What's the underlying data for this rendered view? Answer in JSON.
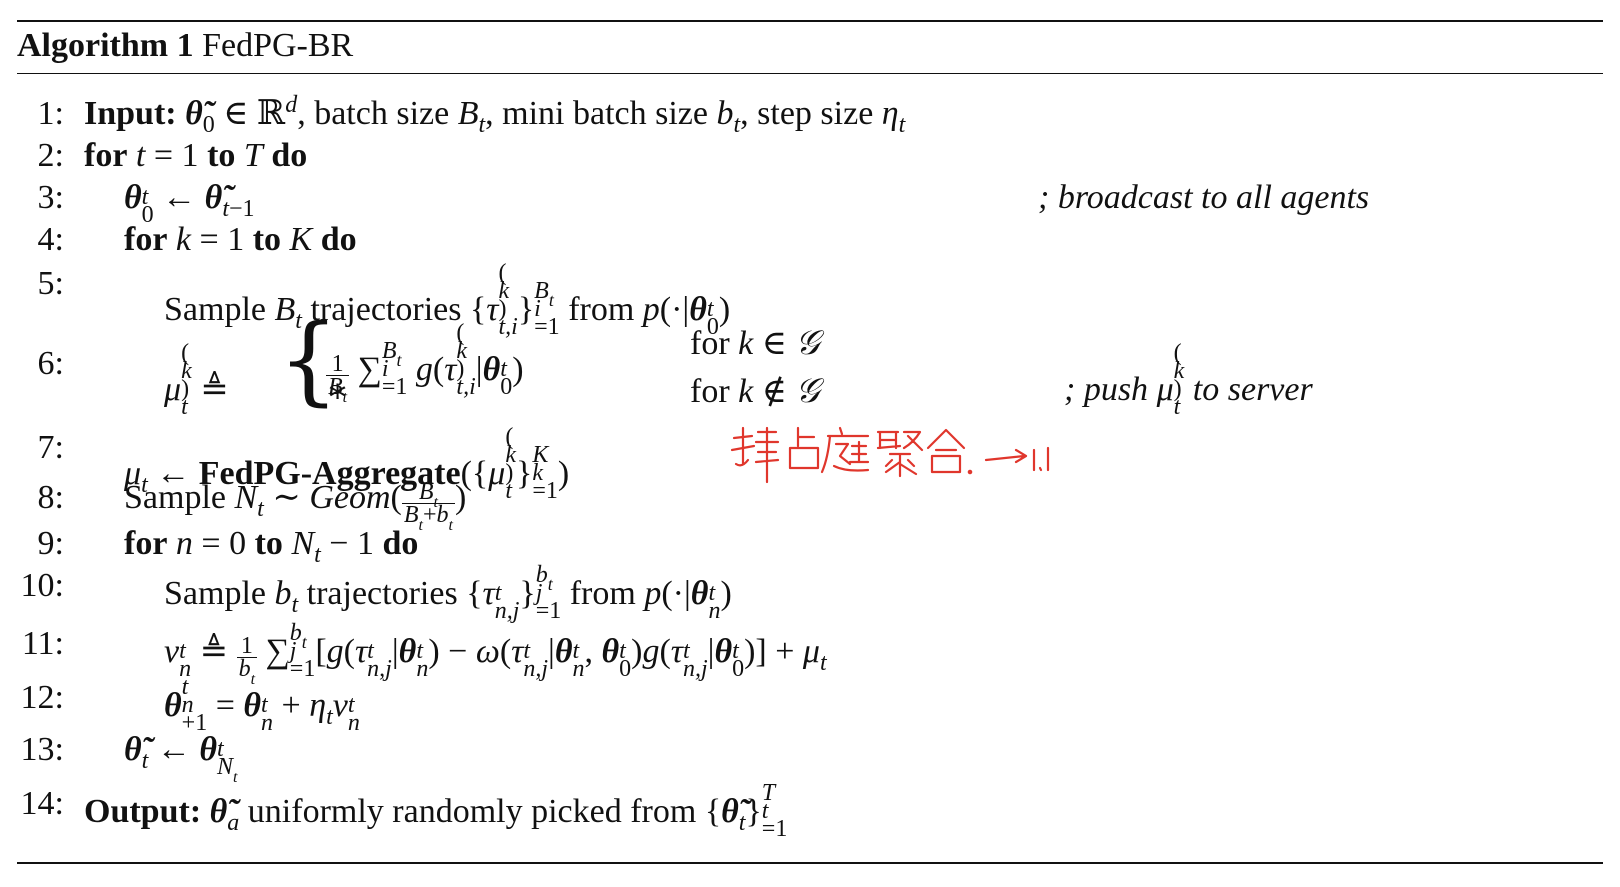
{
  "algorithm": {
    "label": "Algorithm 1",
    "name": "FedPG-BR"
  },
  "lines": [
    {
      "n": "1:",
      "kw": "Input:",
      "text": "θ̃0 ∈ ℝd, batch size Bt, mini batch size bt, step size ηt"
    },
    {
      "n": "2:",
      "kw": "for",
      "text": "t = 1 to T do"
    },
    {
      "n": "3:",
      "text": "θ0t ← θ̃t−1",
      "comment": "; broadcast to all agents"
    },
    {
      "n": "4:",
      "kw": "for",
      "text": "k = 1 to K do"
    },
    {
      "n": "5:",
      "text": "Sample Bt trajectories {τt,i(k)}i=1Bt from p(·|θ0t)"
    },
    {
      "n": "6:",
      "text": "μt(k) ≜",
      "comment": "; push μt(k) to server"
    },
    {
      "n": "7:",
      "text": "μt ← FedPG-Aggregate({μt(k)}k=1K)"
    },
    {
      "n": "8:",
      "text": "Sample Nt ∼ Geom(Bt / (Bt+bt))"
    },
    {
      "n": "9:",
      "kw": "for",
      "text": "n = 0 to Nt − 1 do"
    },
    {
      "n": "10:",
      "text": "Sample bt trajectories {τn,jt}j=1bt from p(·|θnt)"
    },
    {
      "n": "11:",
      "text": "vnt ≜ 1/bt Σj=1bt [g(τn,jt|θnt) − ω(τn,jt|θnt, θ0t)g(τn,jt|θ0t)] + μt"
    },
    {
      "n": "12:",
      "text": "θn+1t = θnt + ηtvnt"
    },
    {
      "n": "13:",
      "text": "θ̃t ← θNtt"
    },
    {
      "n": "14:",
      "kw": "Output:",
      "text": "θ̃a uniformly randomly picked from {θ̃t}t=1T"
    }
  ],
  "text": {
    "l1_a": ", batch size ",
    "l1_b": ", mini batch size ",
    "l1_c": ", step size ",
    "to": "to",
    "do": "do",
    "for": "for",
    "sample": "Sample ",
    "trajectories": " trajectories ",
    "from": " from ",
    "aggregate": "FedPG-Aggregate",
    "geom": "Geom",
    "uniformly": " uniformly randomly picked from ",
    "case_for_in": "for ",
    "case_for_notin": "for "
  },
  "annotation": {
    "handwritten": "拜占庭聚合 →1.1",
    "ink_color": "#e0362c"
  },
  "colors": {
    "ink": "#111111",
    "annotation": "#e0362c"
  }
}
